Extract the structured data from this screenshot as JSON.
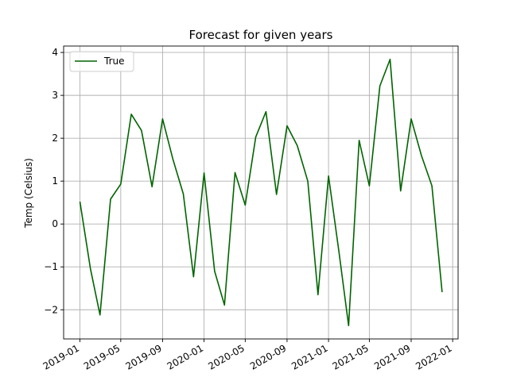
{
  "chart_data": {
    "type": "line",
    "title": "Forecast for given years",
    "xlabel": "",
    "ylabel": "Temp (Celsius)",
    "grid": true,
    "legend_placement": "top-left",
    "x": [
      "2019-01",
      "2019-02",
      "2019-03",
      "2019-04",
      "2019-05",
      "2019-06",
      "2019-07",
      "2019-08",
      "2019-09",
      "2019-10",
      "2019-11",
      "2019-12",
      "2020-01",
      "2020-02",
      "2020-03",
      "2020-04",
      "2020-05",
      "2020-06",
      "2020-07",
      "2020-08",
      "2020-09",
      "2020-10",
      "2020-11",
      "2020-12",
      "2021-01",
      "2021-02",
      "2021-03",
      "2021-04",
      "2021-05",
      "2021-06",
      "2021-07",
      "2021-08",
      "2021-09",
      "2021-10",
      "2021-11",
      "2021-12"
    ],
    "series": [
      {
        "name": "True",
        "color": "#006400",
        "values": [
          0.52,
          -1.05,
          -2.12,
          0.58,
          0.93,
          2.56,
          2.18,
          0.87,
          2.45,
          1.52,
          0.7,
          -1.23,
          1.19,
          -1.1,
          -1.89,
          1.2,
          0.44,
          2.03,
          2.62,
          0.69,
          2.29,
          1.83,
          1.0,
          -1.65,
          1.12,
          -0.67,
          -2.37,
          1.95,
          0.89,
          3.22,
          3.84,
          0.77,
          2.45,
          1.6,
          0.89,
          -1.59
        ]
      }
    ],
    "xticks": [
      "2019-01",
      "2019-05",
      "2019-09",
      "2020-01",
      "2020-05",
      "2020-09",
      "2021-01",
      "2021-05",
      "2021-09",
      "2022-01"
    ],
    "yticks": [
      -2,
      -1,
      0,
      1,
      2,
      3,
      4
    ],
    "ylim": [
      -2.68,
      4.15
    ],
    "xlim": [
      "2018-11-14",
      "2022-01-17"
    ]
  }
}
